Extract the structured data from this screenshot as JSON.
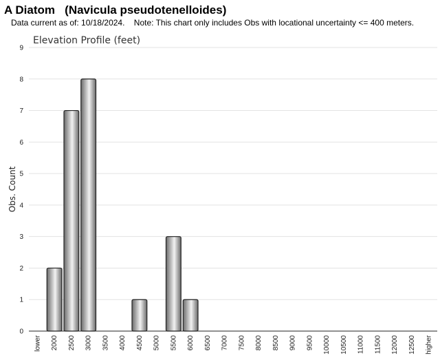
{
  "header": {
    "title": "A Diatom   (Navicula pseudotenelloides)",
    "note": "Data current as of: 10/18/2024.    Note: This chart only includes Obs with locational uncertainty <= 400 meters."
  },
  "chart_data": {
    "type": "bar",
    "title": "Elevation Profile (feet)",
    "xlabel": "",
    "ylabel": "Obs. Count",
    "ylim": [
      0,
      9
    ],
    "yticks": [
      0,
      1,
      2,
      3,
      4,
      5,
      6,
      7,
      8,
      9
    ],
    "grid": true,
    "categories": [
      "lower",
      "2000",
      "2500",
      "3000",
      "3500",
      "4000",
      "4500",
      "5000",
      "5500",
      "6000",
      "6500",
      "7000",
      "7500",
      "8000",
      "8500",
      "9000",
      "9500",
      "10000",
      "10500",
      "11000",
      "11500",
      "12000",
      "12500",
      "higher"
    ],
    "values": [
      0,
      2,
      7,
      8,
      0,
      0,
      1,
      0,
      3,
      1,
      0,
      0,
      0,
      0,
      0,
      0,
      0,
      0,
      0,
      0,
      0,
      0,
      0,
      0
    ],
    "colors": {
      "bar_dark": "#6a6a6a",
      "bar_light": "#f2f2f2",
      "bar_edge": "#222222",
      "grid": "#e3e3e3",
      "axis": "#222222"
    }
  }
}
